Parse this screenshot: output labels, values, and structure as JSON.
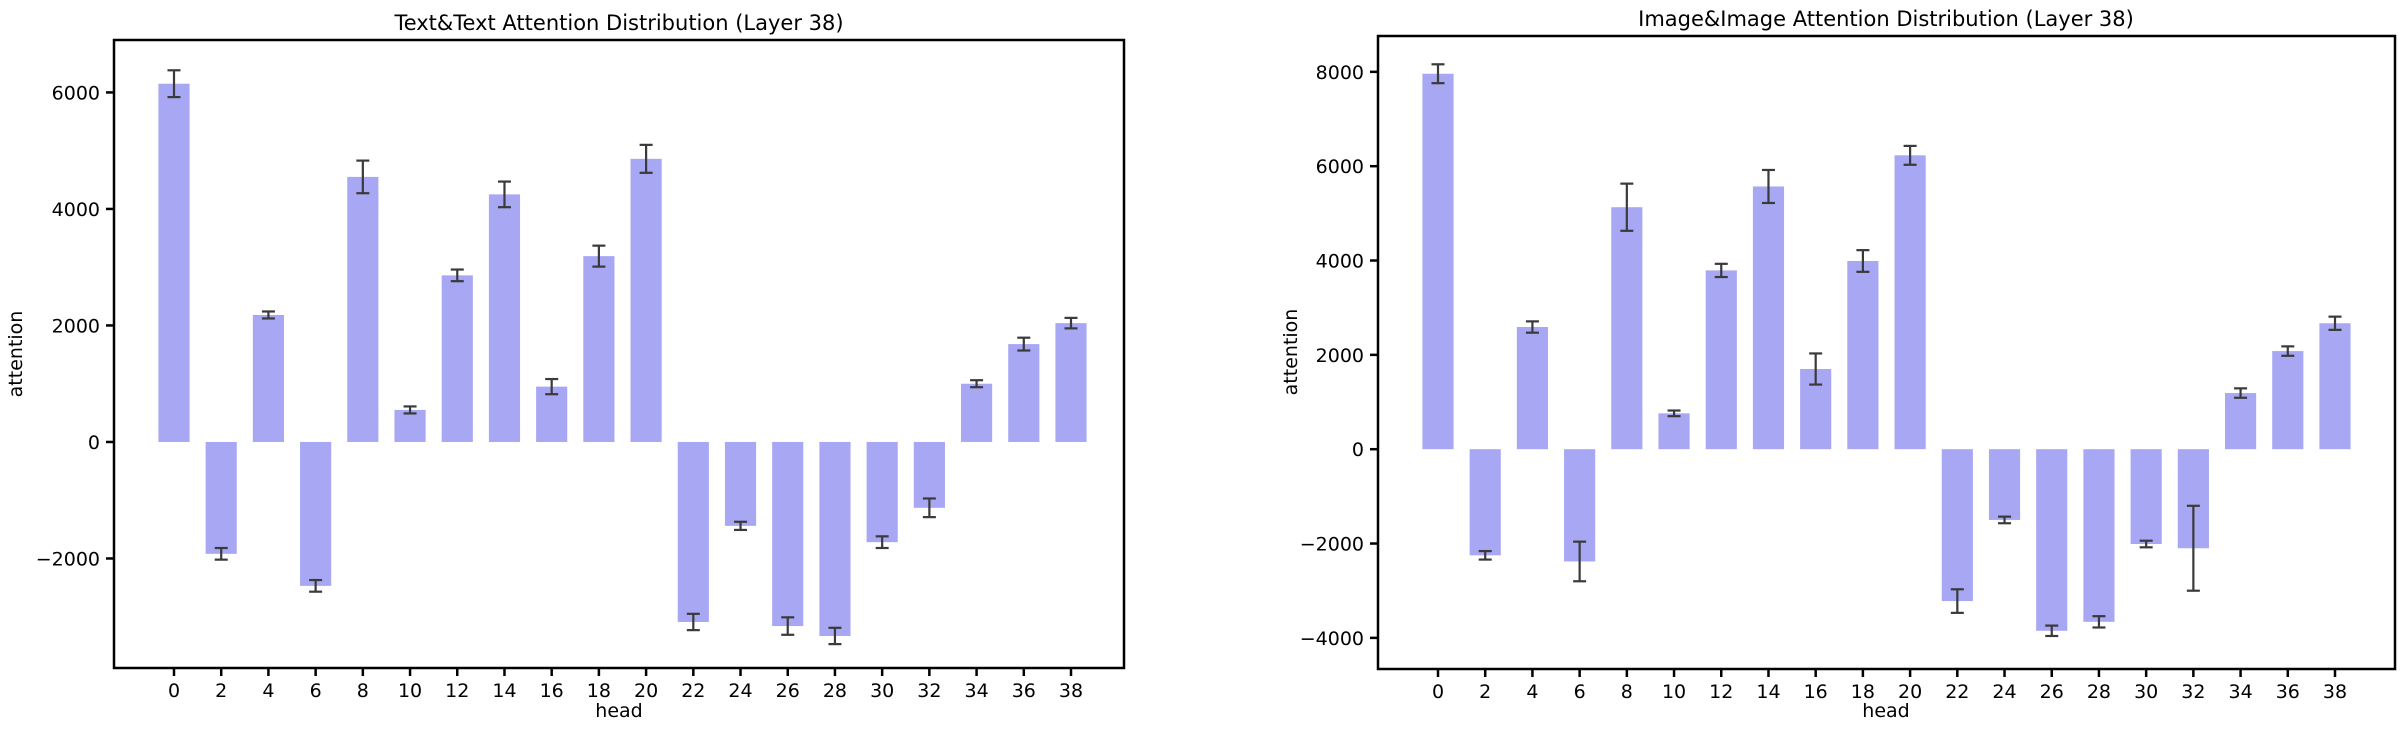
{
  "figure": {
    "background": "#ffffff",
    "bar_color": "#a7a7f3",
    "error_color": "#3a3a3a",
    "spine_color": "#000000",
    "text_color": "#000000"
  },
  "chart_data": [
    {
      "type": "bar",
      "title": "Text&Text Attention Distribution (Layer 38)",
      "xlabel": "head",
      "ylabel": "attention",
      "categories": [
        "0",
        "2",
        "4",
        "6",
        "8",
        "10",
        "12",
        "14",
        "16",
        "18",
        "20",
        "22",
        "24",
        "26",
        "28",
        "30",
        "32",
        "34",
        "36",
        "38"
      ],
      "values": [
        6150,
        -1920,
        2180,
        -2470,
        4550,
        550,
        2860,
        4250,
        950,
        3190,
        4860,
        -3090,
        -1440,
        -3160,
        -3330,
        -1720,
        -1130,
        1000,
        1680,
        2040
      ],
      "errors": [
        230,
        100,
        60,
        100,
        280,
        60,
        100,
        220,
        130,
        180,
        240,
        140,
        70,
        150,
        140,
        100,
        160,
        60,
        110,
        90
      ],
      "ylim": [
        -3880,
        6900
      ],
      "ytick_values": [
        -2000,
        0,
        2000,
        4000,
        6000
      ],
      "ytick_labels": [
        "−2000",
        "0",
        "2000",
        "4000",
        "6000"
      ],
      "grid": false,
      "legend": "none"
    },
    {
      "type": "bar",
      "title": "Image&Image Attention Distribution (Layer 38)",
      "xlabel": "head",
      "ylabel": "attention",
      "categories": [
        "0",
        "2",
        "4",
        "6",
        "8",
        "10",
        "12",
        "14",
        "16",
        "18",
        "20",
        "22",
        "24",
        "26",
        "28",
        "30",
        "32",
        "34",
        "36",
        "38"
      ],
      "values": [
        7960,
        -2250,
        2590,
        -2380,
        5130,
        760,
        3790,
        5570,
        1700,
        3990,
        6230,
        -3220,
        -1500,
        -3850,
        -3660,
        -2010,
        -2100,
        1190,
        2080,
        2670
      ],
      "errors": [
        200,
        90,
        120,
        420,
        500,
        60,
        140,
        350,
        330,
        230,
        200,
        250,
        70,
        110,
        120,
        70,
        900,
        100,
        100,
        140
      ],
      "ylim": [
        -4660,
        8760
      ],
      "ytick_values": [
        -4000,
        -2000,
        0,
        2000,
        4000,
        6000,
        8000
      ],
      "ytick_labels": [
        "−4000",
        "−2000",
        "0",
        "2000",
        "4000",
        "6000",
        "8000"
      ],
      "grid": false,
      "legend": "none"
    }
  ]
}
